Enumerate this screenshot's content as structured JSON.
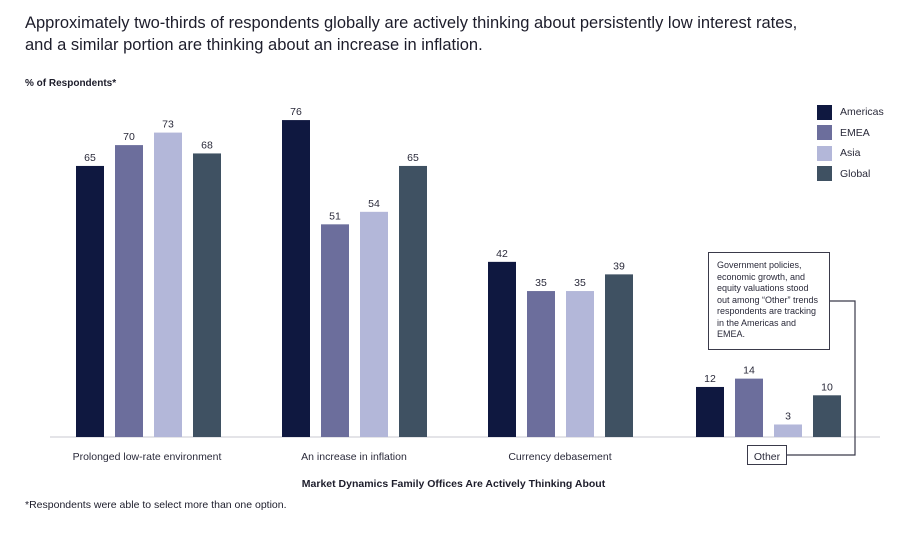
{
  "title": "Approximately two-thirds of respondents globally are actively thinking about persistently low interest rates,\nand a similar portion are thinking about an increase in inflation.",
  "chart_data": {
    "type": "bar",
    "ylabel": "% of Respondents*",
    "xlabel": "Market Dynamics Family Offices Are Actively Thinking About",
    "categories": [
      "Prolonged low-rate environment",
      "An increase in inflation",
      "Currency debasement",
      "Other"
    ],
    "series": [
      {
        "name": "Americas",
        "color": "#0f1840",
        "values": [
          65,
          76,
          42,
          12
        ]
      },
      {
        "name": "EMEA",
        "color": "#6c6e9c",
        "values": [
          70,
          51,
          35,
          14
        ]
      },
      {
        "name": "Asia",
        "color": "#b3b7d9",
        "values": [
          73,
          54,
          35,
          3
        ]
      },
      {
        "name": "Global",
        "color": "#3f5162",
        "values": [
          68,
          65,
          39,
          10
        ]
      }
    ],
    "ylim": [
      0,
      80
    ],
    "grid": false,
    "legend_position": "top-right",
    "annotation": "Government policies, economic growth, and equity valuations stood out among “Other” trends respondents are tracking in the Americas and EMEA."
  },
  "footnote": "*Respondents were able to select more than one option."
}
